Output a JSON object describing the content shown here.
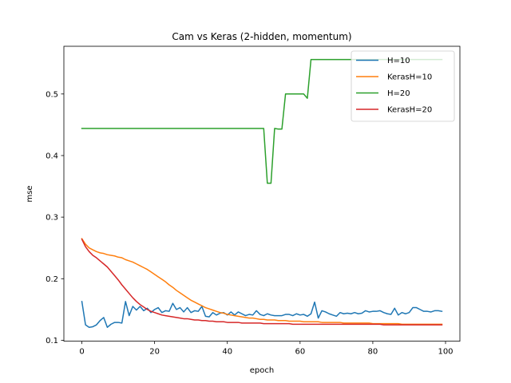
{
  "chart_data": {
    "type": "line",
    "title": "Cam vs Keras (2-hidden, momentum)",
    "xlabel": "epoch",
    "ylabel": "mse",
    "xlim": [
      -4.95,
      103.95
    ],
    "ylim": [
      0.0985,
      0.5775
    ],
    "xticks": [
      0,
      20,
      40,
      60,
      80,
      100
    ],
    "yticks": [
      0.1,
      0.2,
      0.3,
      0.4,
      0.5
    ],
    "ytick_labels": [
      "0.1",
      "0.2",
      "0.3",
      "0.4",
      "0.5"
    ],
    "grid": false,
    "legend_position": "top-right",
    "series": [
      {
        "name": "H=10",
        "color": "#1f77b4",
        "x": [
          0,
          1,
          2,
          3,
          4,
          5,
          6,
          7,
          8,
          9,
          10,
          11,
          12,
          13,
          14,
          15,
          16,
          17,
          18,
          19,
          20,
          21,
          22,
          23,
          24,
          25,
          26,
          27,
          28,
          29,
          30,
          31,
          32,
          33,
          34,
          35,
          36,
          37,
          38,
          39,
          40,
          41,
          42,
          43,
          44,
          45,
          46,
          47,
          48,
          49,
          50,
          51,
          52,
          53,
          54,
          55,
          56,
          57,
          58,
          59,
          60,
          61,
          62,
          63,
          64,
          65,
          66,
          67,
          68,
          69,
          70,
          71,
          72,
          73,
          74,
          75,
          76,
          77,
          78,
          79,
          80,
          81,
          82,
          83,
          84,
          85,
          86,
          87,
          88,
          89,
          90,
          91,
          92,
          93,
          94,
          95,
          96,
          97,
          98,
          99
        ],
        "values": [
          0.163,
          0.125,
          0.121,
          0.122,
          0.125,
          0.132,
          0.137,
          0.121,
          0.126,
          0.129,
          0.129,
          0.128,
          0.163,
          0.14,
          0.155,
          0.149,
          0.155,
          0.148,
          0.152,
          0.145,
          0.15,
          0.153,
          0.145,
          0.148,
          0.147,
          0.16,
          0.15,
          0.153,
          0.146,
          0.153,
          0.145,
          0.148,
          0.147,
          0.155,
          0.139,
          0.138,
          0.145,
          0.141,
          0.144,
          0.145,
          0.141,
          0.146,
          0.141,
          0.146,
          0.143,
          0.14,
          0.142,
          0.141,
          0.148,
          0.142,
          0.14,
          0.143,
          0.141,
          0.14,
          0.14,
          0.14,
          0.142,
          0.142,
          0.14,
          0.143,
          0.141,
          0.142,
          0.139,
          0.143,
          0.162,
          0.136,
          0.148,
          0.146,
          0.143,
          0.141,
          0.139,
          0.145,
          0.143,
          0.144,
          0.143,
          0.145,
          0.143,
          0.144,
          0.148,
          0.146,
          0.147,
          0.147,
          0.148,
          0.145,
          0.143,
          0.142,
          0.152,
          0.141,
          0.145,
          0.143,
          0.145,
          0.153,
          0.153,
          0.15,
          0.147,
          0.147,
          0.146,
          0.148,
          0.148,
          0.147
        ]
      },
      {
        "name": "KerasH=10",
        "color": "#ff7f0e",
        "x": [
          0,
          1,
          2,
          3,
          4,
          5,
          6,
          7,
          8,
          9,
          10,
          11,
          12,
          13,
          14,
          15,
          16,
          17,
          18,
          19,
          20,
          21,
          22,
          23,
          24,
          25,
          26,
          27,
          28,
          29,
          30,
          31,
          32,
          33,
          34,
          35,
          36,
          37,
          38,
          39,
          40,
          41,
          42,
          43,
          44,
          45,
          46,
          47,
          48,
          49,
          50,
          51,
          52,
          53,
          54,
          55,
          56,
          57,
          58,
          59,
          60,
          61,
          62,
          63,
          64,
          65,
          66,
          67,
          68,
          69,
          70,
          71,
          72,
          73,
          74,
          75,
          76,
          77,
          78,
          79,
          80,
          81,
          82,
          83,
          84,
          85,
          86,
          87,
          88,
          89,
          90,
          91,
          92,
          93,
          94,
          95,
          96,
          97,
          98,
          99
        ],
        "values": [
          0.265,
          0.256,
          0.25,
          0.247,
          0.244,
          0.242,
          0.241,
          0.239,
          0.238,
          0.237,
          0.235,
          0.234,
          0.231,
          0.229,
          0.227,
          0.224,
          0.221,
          0.218,
          0.215,
          0.211,
          0.207,
          0.203,
          0.199,
          0.195,
          0.19,
          0.186,
          0.181,
          0.177,
          0.173,
          0.169,
          0.165,
          0.162,
          0.159,
          0.156,
          0.153,
          0.151,
          0.149,
          0.147,
          0.145,
          0.144,
          0.142,
          0.141,
          0.14,
          0.139,
          0.138,
          0.137,
          0.136,
          0.136,
          0.135,
          0.134,
          0.134,
          0.133,
          0.133,
          0.133,
          0.132,
          0.132,
          0.132,
          0.131,
          0.131,
          0.131,
          0.131,
          0.13,
          0.13,
          0.13,
          0.13,
          0.13,
          0.129,
          0.129,
          0.129,
          0.129,
          0.129,
          0.129,
          0.128,
          0.128,
          0.128,
          0.128,
          0.128,
          0.128,
          0.128,
          0.128,
          0.127,
          0.127,
          0.127,
          0.127,
          0.127,
          0.127,
          0.127,
          0.127,
          0.126,
          0.126,
          0.126,
          0.126,
          0.126,
          0.126,
          0.126,
          0.126,
          0.126,
          0.126,
          0.126,
          0.126
        ]
      },
      {
        "name": "H=20",
        "color": "#2ca02c",
        "x": [
          0,
          1,
          2,
          3,
          4,
          5,
          6,
          7,
          8,
          9,
          10,
          11,
          12,
          13,
          14,
          15,
          16,
          17,
          18,
          19,
          20,
          21,
          22,
          23,
          24,
          25,
          26,
          27,
          28,
          29,
          30,
          31,
          32,
          33,
          34,
          35,
          36,
          37,
          38,
          39,
          40,
          41,
          42,
          43,
          44,
          45,
          46,
          47,
          48,
          49,
          50,
          51,
          52,
          53,
          54,
          55,
          56,
          57,
          58,
          59,
          60,
          61,
          62,
          63,
          64,
          65,
          66,
          67,
          68,
          69,
          70,
          71,
          72,
          73,
          74,
          75,
          76,
          77,
          78,
          79,
          80,
          81,
          82,
          83,
          84,
          85,
          86,
          87,
          88,
          89,
          90,
          91,
          92,
          93,
          94,
          95,
          96,
          97,
          98,
          99
        ],
        "values": [
          0.444,
          0.444,
          0.444,
          0.444,
          0.444,
          0.444,
          0.444,
          0.444,
          0.444,
          0.444,
          0.444,
          0.444,
          0.444,
          0.444,
          0.444,
          0.444,
          0.444,
          0.444,
          0.444,
          0.444,
          0.444,
          0.444,
          0.444,
          0.444,
          0.444,
          0.444,
          0.444,
          0.444,
          0.444,
          0.444,
          0.444,
          0.444,
          0.444,
          0.444,
          0.444,
          0.444,
          0.444,
          0.444,
          0.444,
          0.444,
          0.444,
          0.444,
          0.444,
          0.444,
          0.444,
          0.444,
          0.444,
          0.444,
          0.444,
          0.444,
          0.444,
          0.355,
          0.355,
          0.444,
          0.443,
          0.443,
          0.5,
          0.5,
          0.5,
          0.5,
          0.5,
          0.5,
          0.493,
          0.556,
          0.556,
          0.556,
          0.556,
          0.556,
          0.556,
          0.556,
          0.556,
          0.556,
          0.556,
          0.556,
          0.556,
          0.556,
          0.556,
          0.556,
          0.556,
          0.556,
          0.556,
          0.556,
          0.556,
          0.556,
          0.556,
          0.556,
          0.556,
          0.556,
          0.556,
          0.556,
          0.556,
          0.556,
          0.556,
          0.556,
          0.556,
          0.556,
          0.556,
          0.556,
          0.556,
          0.556
        ]
      },
      {
        "name": "KerasH=20",
        "color": "#d62728",
        "x": [
          0,
          1,
          2,
          3,
          4,
          5,
          6,
          7,
          8,
          9,
          10,
          11,
          12,
          13,
          14,
          15,
          16,
          17,
          18,
          19,
          20,
          21,
          22,
          23,
          24,
          25,
          26,
          27,
          28,
          29,
          30,
          31,
          32,
          33,
          34,
          35,
          36,
          37,
          38,
          39,
          40,
          41,
          42,
          43,
          44,
          45,
          46,
          47,
          48,
          49,
          50,
          51,
          52,
          53,
          54,
          55,
          56,
          57,
          58,
          59,
          60,
          61,
          62,
          63,
          64,
          65,
          66,
          67,
          68,
          69,
          70,
          71,
          72,
          73,
          74,
          75,
          76,
          77,
          78,
          79,
          80,
          81,
          82,
          83,
          84,
          85,
          86,
          87,
          88,
          89,
          90,
          91,
          92,
          93,
          94,
          95,
          96,
          97,
          98,
          99
        ],
        "values": [
          0.264,
          0.252,
          0.244,
          0.238,
          0.234,
          0.229,
          0.224,
          0.219,
          0.212,
          0.205,
          0.198,
          0.19,
          0.183,
          0.176,
          0.169,
          0.163,
          0.158,
          0.154,
          0.15,
          0.147,
          0.145,
          0.143,
          0.141,
          0.14,
          0.139,
          0.138,
          0.137,
          0.136,
          0.135,
          0.135,
          0.134,
          0.133,
          0.133,
          0.132,
          0.132,
          0.131,
          0.131,
          0.13,
          0.13,
          0.13,
          0.129,
          0.129,
          0.129,
          0.129,
          0.128,
          0.128,
          0.128,
          0.128,
          0.128,
          0.128,
          0.127,
          0.127,
          0.127,
          0.127,
          0.127,
          0.127,
          0.127,
          0.127,
          0.126,
          0.126,
          0.126,
          0.126,
          0.126,
          0.126,
          0.126,
          0.126,
          0.126,
          0.126,
          0.126,
          0.126,
          0.126,
          0.126,
          0.126,
          0.126,
          0.126,
          0.126,
          0.126,
          0.126,
          0.126,
          0.126,
          0.126,
          0.126,
          0.126,
          0.125,
          0.125,
          0.125,
          0.125,
          0.125,
          0.125,
          0.125,
          0.125,
          0.125,
          0.125,
          0.125,
          0.125,
          0.125,
          0.125,
          0.125,
          0.125,
          0.125
        ]
      }
    ]
  }
}
